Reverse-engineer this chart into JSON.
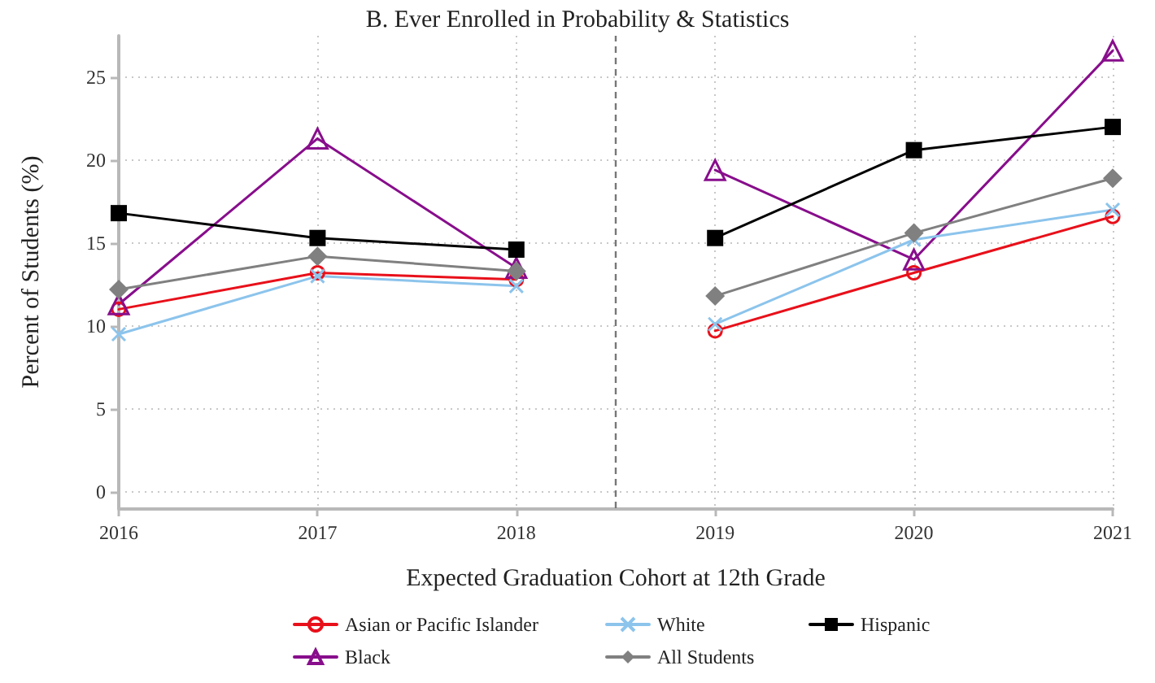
{
  "chart_data": {
    "type": "line",
    "title": "B. Ever Enrolled in Probability & Statistics",
    "xlabel": "Expected Graduation Cohort at 12th Grade",
    "ylabel": "Percent of Students (%)",
    "x": [
      2016,
      2017,
      2018,
      2018.5,
      2019,
      2020,
      2021
    ],
    "series": [
      {
        "name": "Asian or Pacific Islander",
        "color": "#e8101a",
        "marker": "circle",
        "values": [
          11.0,
          13.2,
          12.8,
          null,
          9.7,
          13.2,
          16.6
        ]
      },
      {
        "name": "Black",
        "color": "#880e8c",
        "marker": "triangle",
        "values": [
          11.3,
          21.3,
          13.5,
          null,
          19.4,
          14.0,
          26.6
        ]
      },
      {
        "name": "White",
        "color": "#8cc4ec",
        "marker": "cross",
        "values": [
          9.5,
          13.0,
          12.4,
          null,
          10.1,
          15.2,
          17.0
        ]
      },
      {
        "name": "All Students",
        "color": "#808080",
        "marker": "diamond",
        "values": [
          12.2,
          14.2,
          13.3,
          null,
          11.8,
          15.6,
          18.9
        ]
      },
      {
        "name": "Hispanic",
        "color": "#000000",
        "marker": "square",
        "values": [
          16.8,
          15.3,
          14.6,
          null,
          15.3,
          20.6,
          22.0
        ]
      }
    ],
    "xlim": [
      2016,
      2021
    ],
    "xticks": [
      2016,
      2017,
      2018,
      2019,
      2020,
      2021
    ],
    "ylim": [
      -1,
      27.5
    ],
    "yticks": [
      0,
      5,
      10,
      15,
      20,
      25
    ],
    "ref_lines": [
      {
        "axis": "x",
        "value": 2018.5,
        "color": "#777777",
        "line_style": "dashed"
      }
    ],
    "grid": true,
    "legend": "bottom",
    "line_style": "solid"
  }
}
